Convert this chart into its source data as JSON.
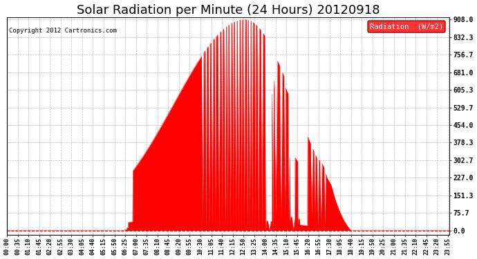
{
  "title": "Solar Radiation per Minute (24 Hours) 20120918",
  "copyright": "Copyright 2012 Cartronics.com",
  "legend_label": "Radiation  (W/m2)",
  "ylabel_right": [
    "0.0",
    "75.7",
    "151.3",
    "227.0",
    "302.7",
    "378.3",
    "454.0",
    "529.7",
    "605.3",
    "681.0",
    "756.7",
    "832.3",
    "908.0"
  ],
  "ytick_vals": [
    0.0,
    75.7,
    151.3,
    227.0,
    302.7,
    378.3,
    454.0,
    529.7,
    605.3,
    681.0,
    756.7,
    832.3,
    908.0
  ],
  "ymax": 908.0,
  "ymin": 0.0,
  "fill_color": "#FF0000",
  "line_color": "#FF0000",
  "bg_color": "#FFFFFF",
  "grid_color": "#AAAAAA",
  "title_fontsize": 13,
  "x_tick_interval_minutes": 35,
  "total_minutes": 1440,
  "sunrise_minute": 385,
  "sunset_minute": 1120,
  "peak_minute": 775,
  "peak_value": 908.0
}
